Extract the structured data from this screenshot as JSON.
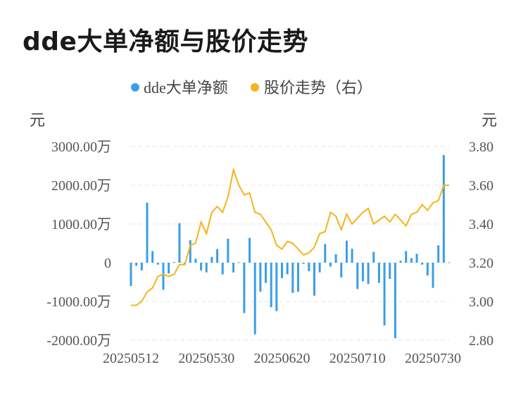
{
  "title": "dde大单净额与股价走势",
  "chart_data": {
    "type": "bar+line",
    "title": "dde大单净额与股价走势",
    "left_unit": "元",
    "right_unit": "元",
    "legend": [
      {
        "name": "dde大单净额",
        "color": "#3a9ee6"
      },
      {
        "name": "股价走势（右）",
        "color": "#f4b41a"
      }
    ],
    "legend_position": "top-center",
    "grid": true,
    "y_left": {
      "min": -2000,
      "max": 3000,
      "ticks": [
        3000,
        2000,
        1000,
        0,
        -1000,
        -2000
      ],
      "tick_labels": [
        "3000.00万",
        "2000.00万",
        "1000.00万",
        "0",
        "-1000.00万",
        "-2000.00万"
      ]
    },
    "y_right": {
      "min": 2.8,
      "max": 3.8,
      "ticks": [
        3.8,
        3.6,
        3.4,
        3.2,
        3.0,
        2.8
      ],
      "tick_labels": [
        "3.80",
        "3.60",
        "3.40",
        "3.20",
        "3.00",
        "2.80"
      ]
    },
    "x_tick_labels": [
      "20250512",
      "20250530",
      "20250620",
      "20250710",
      "20250730"
    ],
    "x_tick_indices": [
      0,
      14,
      28,
      42,
      56
    ],
    "series": [
      {
        "name": "dde大单净额",
        "type": "bar",
        "color": "#3a9ee6",
        "values": [
          -600,
          -80,
          -200,
          1550,
          300,
          -50,
          -700,
          -280,
          20,
          1020,
          -40,
          580,
          100,
          -200,
          -250,
          150,
          350,
          -300,
          620,
          -250,
          10,
          -1300,
          640,
          -1850,
          -750,
          -520,
          -1150,
          -1250,
          -400,
          -300,
          -780,
          -750,
          -30,
          -220,
          -850,
          -250,
          480,
          -100,
          220,
          -380,
          570,
          360,
          -680,
          -480,
          -550,
          280,
          -520,
          -1620,
          -420,
          -1950,
          50,
          300,
          120,
          230,
          -50,
          -330,
          -650,
          450,
          2780,
          10
        ]
      },
      {
        "name": "股价走势（右）",
        "type": "line",
        "color": "#f4b41a",
        "values": [
          2.98,
          2.98,
          3.0,
          3.05,
          3.07,
          3.13,
          3.14,
          3.13,
          3.14,
          3.19,
          3.19,
          3.29,
          3.3,
          3.41,
          3.35,
          3.46,
          3.49,
          3.46,
          3.54,
          3.68,
          3.6,
          3.55,
          3.56,
          3.46,
          3.45,
          3.41,
          3.37,
          3.29,
          3.27,
          3.31,
          3.3,
          3.27,
          3.24,
          3.25,
          3.28,
          3.35,
          3.36,
          3.46,
          3.44,
          3.37,
          3.45,
          3.4,
          3.43,
          3.46,
          3.48,
          3.4,
          3.42,
          3.44,
          3.41,
          3.45,
          3.42,
          3.39,
          3.45,
          3.46,
          3.5,
          3.47,
          3.51,
          3.52,
          3.6,
          3.6
        ]
      }
    ]
  }
}
